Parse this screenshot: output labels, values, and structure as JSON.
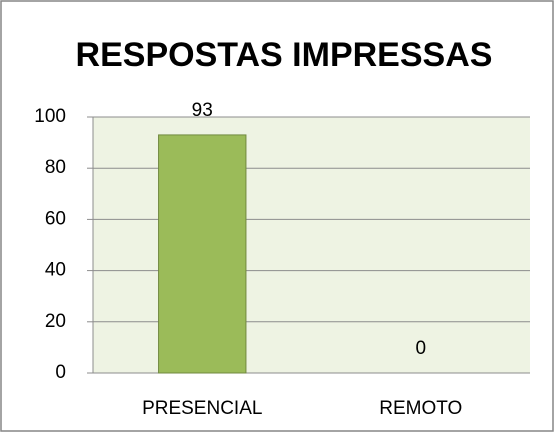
{
  "chart_data": {
    "type": "bar",
    "title": "RESPOSTAS IMPRESSAS",
    "categories": [
      "PRESENCIAL",
      "REMOTO"
    ],
    "values": [
      93,
      0
    ],
    "color": "#9bbb59",
    "ylim": [
      0,
      100
    ],
    "yticks": [
      0,
      20,
      40,
      60,
      80,
      100
    ],
    "grid": true
  }
}
